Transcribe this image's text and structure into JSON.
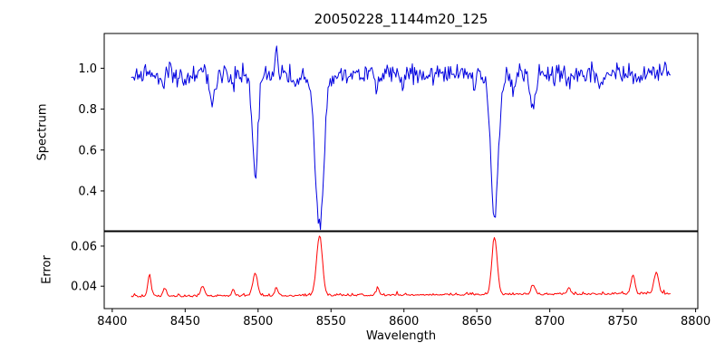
{
  "chart_data": {
    "type": "line",
    "title": "20050228_1144m20_125",
    "xlabel": "Wavelength",
    "x_ticks": [
      8400,
      8450,
      8500,
      8550,
      8600,
      8650,
      8700,
      8750,
      8800
    ],
    "xlim": [
      8394.5,
      8801.5
    ],
    "x_range_data": [
      8413,
      8783
    ],
    "sample_step": 0.75,
    "noise_seed": 20050228,
    "grid": false,
    "legend": "none",
    "panels": [
      {
        "name": "spectrum",
        "ylabel": "Spectrum",
        "color": "#0000e0",
        "ylim": [
          0.205,
          1.17
        ],
        "y_ticks": [
          0.4,
          0.6,
          0.8,
          1.0
        ],
        "y_tick_decimals": 1,
        "continuum": 0.97,
        "noise_sigma": 0.026,
        "absorption_lines": [
          {
            "center": 8434.5,
            "depth": 0.07,
            "sigma": 1.4
          },
          {
            "center": 8450.0,
            "depth": 0.04,
            "sigma": 1.2
          },
          {
            "center": 8468.5,
            "depth": 0.15,
            "sigma": 1.6
          },
          {
            "center": 8483.0,
            "depth": 0.05,
            "sigma": 1.2
          },
          {
            "center": 8498.0,
            "depth": 0.48,
            "sigma": 2.0
          },
          {
            "center": 8526.5,
            "depth": 0.05,
            "sigma": 1.2
          },
          {
            "center": 8542.1,
            "depth": 0.73,
            "sigma": 3.0
          },
          {
            "center": 8582.0,
            "depth": 0.07,
            "sigma": 1.4
          },
          {
            "center": 8598.0,
            "depth": 0.04,
            "sigma": 1.2
          },
          {
            "center": 8648.0,
            "depth": 0.05,
            "sigma": 1.2
          },
          {
            "center": 8662.1,
            "depth": 0.68,
            "sigma": 2.6
          },
          {
            "center": 8674.8,
            "depth": 0.08,
            "sigma": 1.3
          },
          {
            "center": 8688.6,
            "depth": 0.16,
            "sigma": 1.7
          },
          {
            "center": 8713.0,
            "depth": 0.06,
            "sigma": 1.3
          },
          {
            "center": 8736.0,
            "depth": 0.05,
            "sigma": 1.2
          }
        ],
        "emission_spikes": [
          {
            "center": 8512.5,
            "height": 0.14,
            "sigma": 0.9
          }
        ]
      },
      {
        "name": "error",
        "ylabel": "Error",
        "color": "#ff0000",
        "ylim": [
          0.0288,
          0.0672
        ],
        "y_ticks": [
          0.04,
          0.06
        ],
        "y_tick_decimals": 2,
        "baseline": 0.0345,
        "baseline_slope": 4e-06,
        "noise_sigma": 0.0006,
        "spikes": [
          {
            "center": 8425.5,
            "height": 0.0105,
            "sigma": 1.2
          },
          {
            "center": 8436.0,
            "height": 0.0042,
            "sigma": 1.2
          },
          {
            "center": 8462.0,
            "height": 0.0045,
            "sigma": 1.5
          },
          {
            "center": 8483.0,
            "height": 0.003,
            "sigma": 1.0
          },
          {
            "center": 8498.0,
            "height": 0.0115,
            "sigma": 1.6
          },
          {
            "center": 8512.5,
            "height": 0.004,
            "sigma": 1.0
          },
          {
            "center": 8542.1,
            "height": 0.03,
            "sigma": 2.0
          },
          {
            "center": 8582.0,
            "height": 0.003,
            "sigma": 1.2
          },
          {
            "center": 8662.1,
            "height": 0.0285,
            "sigma": 1.8
          },
          {
            "center": 8688.6,
            "height": 0.0045,
            "sigma": 1.4
          },
          {
            "center": 8713.0,
            "height": 0.003,
            "sigma": 1.2
          },
          {
            "center": 8757.0,
            "height": 0.0095,
            "sigma": 1.3
          },
          {
            "center": 8773.0,
            "height": 0.0105,
            "sigma": 1.6
          }
        ]
      }
    ]
  }
}
